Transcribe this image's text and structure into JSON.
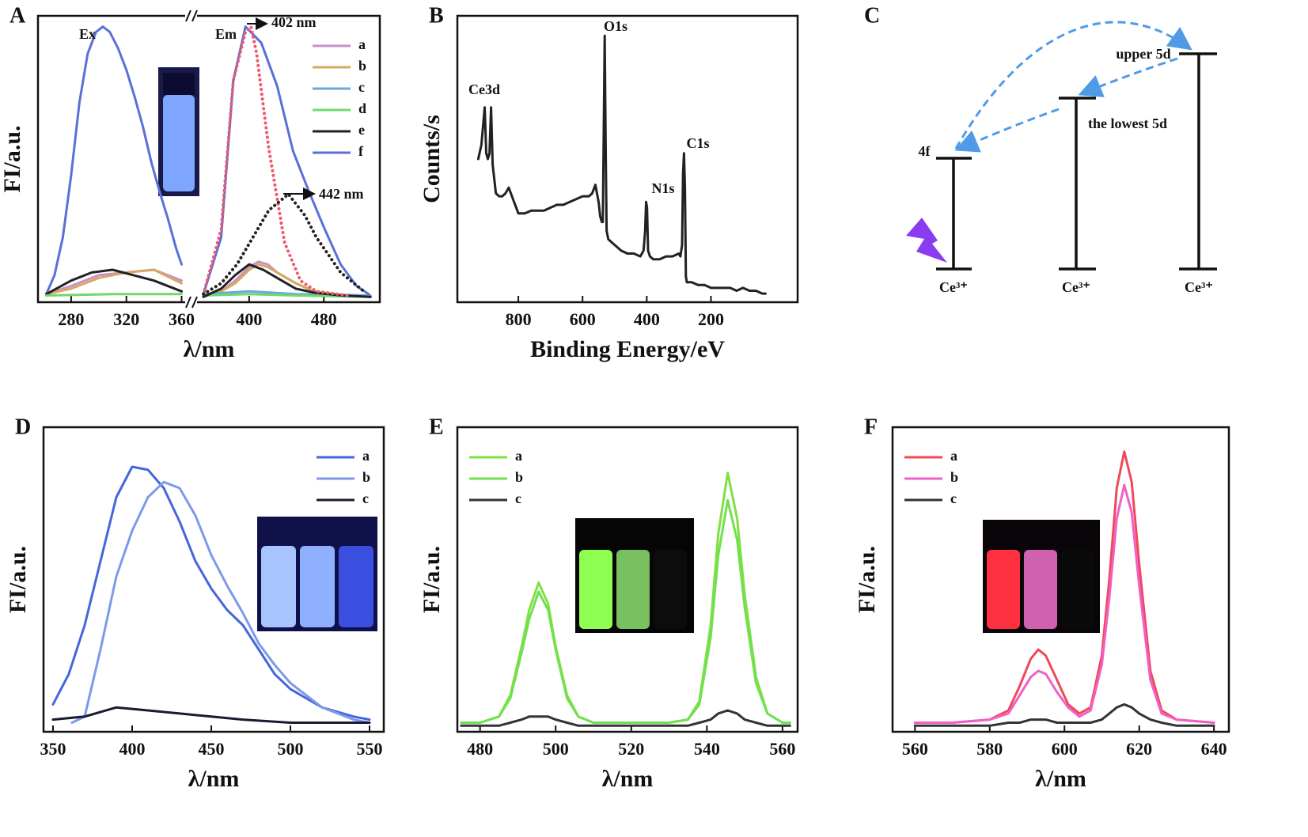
{
  "chart_data": [
    {
      "type": "line",
      "panel_label": "A",
      "xlabel": "λ/nm",
      "ylabel": "FI/a.u.",
      "ylim": [
        -2,
        104
      ],
      "axes": [
        {
          "xlim": [
            256,
            362
          ],
          "xticks": [
            280,
            320,
            360
          ]
        },
        {
          "xlim": [
            345,
            540
          ],
          "xticks": [
            400,
            480
          ]
        }
      ],
      "legend": "upper right",
      "annotations": [
        "Ex",
        "Em",
        "402 nm",
        "442 nm"
      ],
      "series": [
        {
          "name": "a",
          "color": "#c890c8",
          "axis": 1,
          "x": [
            351,
            370,
            385,
            400,
            410,
            420,
            430,
            450,
            470,
            500,
            530
          ],
          "values": [
            0,
            2,
            6,
            11,
            13,
            12,
            9,
            5,
            2,
            0.5,
            0
          ]
        },
        {
          "name": "b",
          "color": "#d8a860",
          "axis": 1,
          "x": [
            351,
            370,
            385,
            400,
            410,
            420,
            430,
            450,
            470,
            500,
            530
          ],
          "values": [
            0,
            2,
            5,
            10,
            12,
            11,
            9,
            5,
            2,
            0.5,
            0
          ]
        },
        {
          "name": "c",
          "color": "#6aa8e0",
          "axis": 1,
          "x": [
            351,
            400,
            450,
            530
          ],
          "values": [
            1,
            2,
            1,
            0.5
          ]
        },
        {
          "name": "d",
          "color": "#70d870",
          "axis": 1,
          "x": [
            351,
            400,
            450,
            530
          ],
          "values": [
            0.5,
            1,
            0.5,
            0
          ]
        },
        {
          "name": "e",
          "color": "#222222",
          "axis": 1,
          "x": [
            351,
            370,
            385,
            400,
            415,
            430,
            450,
            470,
            500,
            530
          ],
          "values": [
            0,
            3,
            8,
            12,
            10,
            7,
            3,
            1.5,
            0.5,
            0
          ]
        },
        {
          "name": "f",
          "color": "#5a70d8",
          "axis": 1,
          "x": [
            351,
            370,
            383,
            396,
            413,
            430,
            447,
            464,
            481,
            498,
            515,
            528
          ],
          "values": [
            1,
            22,
            80,
            100,
            94,
            78,
            54,
            39,
            25,
            12,
            4,
            1
          ]
        },
        {
          "color": "#f05a6a",
          "style": "dotted",
          "axis": 1,
          "x": [
            351,
            370,
            383,
            396,
            402,
            408,
            421,
            438,
            455,
            472,
            506
          ],
          "values": [
            1,
            25,
            80,
            98,
            100,
            90,
            55,
            20,
            6,
            2,
            0.5
          ]
        },
        {
          "color": "#222222",
          "style": "dotted",
          "axis": 1,
          "x": [
            351,
            370,
            387,
            404,
            421,
            442,
            460,
            472,
            498,
            523
          ],
          "values": [
            1,
            5,
            12,
            22,
            32,
            38,
            30,
            22,
            9,
            2
          ]
        },
        {
          "color": "#5a70d8",
          "axis": 0,
          "x": [
            262,
            268,
            274,
            280,
            286,
            292,
            298,
            303,
            308,
            314,
            320,
            326,
            332,
            338,
            344,
            350,
            356,
            360
          ],
          "values": [
            1,
            8,
            22,
            45,
            72,
            90,
            98,
            100,
            98,
            92,
            84,
            74,
            63,
            50,
            39,
            29,
            18,
            12
          ]
        },
        {
          "color": "#c890c8",
          "axis": 0,
          "x": [
            262,
            280,
            300,
            320,
            340,
            360
          ],
          "values": [
            1,
            4,
            8,
            9,
            10,
            6
          ]
        },
        {
          "color": "#d8a860",
          "axis": 0,
          "x": [
            262,
            280,
            300,
            320,
            340,
            360
          ],
          "values": [
            1,
            3,
            7,
            9,
            10,
            5
          ]
        },
        {
          "color": "#222222",
          "axis": 0,
          "x": [
            262,
            280,
            295,
            310,
            325,
            340,
            360
          ],
          "values": [
            1,
            6,
            9,
            10,
            8,
            6,
            2
          ]
        },
        {
          "color": "#70d870",
          "axis": 0,
          "x": [
            262,
            310,
            360
          ],
          "values": [
            0.5,
            1,
            1
          ]
        }
      ]
    },
    {
      "type": "line",
      "panel_label": "B",
      "xlabel": "Binding Energy/eV",
      "ylabel": "Counts/s",
      "ylim": [
        0,
        100
      ],
      "xlim": [
        990,
        -70
      ],
      "xticks": [
        800,
        600,
        400,
        200
      ],
      "color": "#222222",
      "annotations": [
        "Ce3d",
        "O1s",
        "N1s",
        "C1s"
      ],
      "x": [
        925,
        915,
        905,
        900,
        895,
        890,
        885,
        880,
        870,
        860,
        850,
        840,
        830,
        820,
        800,
        780,
        760,
        740,
        720,
        700,
        680,
        660,
        640,
        620,
        600,
        580,
        570,
        560,
        550,
        545,
        540,
        537,
        534,
        531,
        528,
        525,
        520,
        510,
        500,
        480,
        460,
        440,
        420,
        410,
        405,
        402,
        399,
        396,
        390,
        380,
        360,
        340,
        320,
        300,
        295,
        290,
        287,
        284,
        281,
        278,
        275,
        270,
        260,
        240,
        220,
        200,
        180,
        160,
        140,
        120,
        100,
        80,
        60,
        40,
        30
      ],
      "values": [
        50,
        55,
        68,
        52,
        50,
        52,
        68,
        48,
        38,
        37,
        37,
        38,
        40,
        37,
        31,
        31,
        32,
        32,
        32,
        33,
        34,
        34,
        35,
        36,
        37,
        37,
        38,
        41,
        35,
        30,
        28,
        28,
        60,
        93,
        55,
        25,
        22,
        21,
        20,
        18,
        17,
        17,
        16,
        18,
        25,
        35,
        33,
        18,
        16,
        15,
        15,
        16,
        16,
        17,
        16,
        20,
        45,
        52,
        40,
        9,
        7,
        7,
        7,
        6,
        6,
        5,
        5,
        5,
        5,
        4,
        5,
        4,
        4,
        3,
        3
      ]
    },
    {
      "type": "diagram",
      "panel_label": "C",
      "levels": [
        "4f",
        "the lowest 5d",
        "upper 5d"
      ],
      "ground": [
        "Ce³⁺",
        "Ce³⁺",
        "Ce³⁺"
      ]
    },
    {
      "type": "line",
      "panel_label": "D",
      "xlabel": "λ/nm",
      "ylabel": "FI/a.u.",
      "ylim": [
        0,
        100
      ],
      "xlim": [
        344,
        559
      ],
      "xticks": [
        350,
        400,
        450,
        500,
        550
      ],
      "legend": "upper right",
      "series": [
        {
          "name": "a",
          "color": "#4466dd",
          "x": [
            350,
            360,
            370,
            380,
            390,
            400,
            410,
            420,
            430,
            440,
            450,
            460,
            470,
            480,
            490,
            500,
            520,
            540,
            550
          ],
          "values": [
            9,
            19,
            35,
            56,
            77,
            87,
            86,
            80,
            69,
            56,
            47,
            40,
            35,
            27,
            19,
            14,
            8,
            5,
            4
          ]
        },
        {
          "name": "b",
          "color": "#7d9ae8",
          "x": [
            362,
            370,
            380,
            390,
            400,
            410,
            420,
            430,
            440,
            450,
            460,
            470,
            480,
            490,
            500,
            520,
            540,
            550
          ],
          "values": [
            3,
            5,
            27,
            51,
            66,
            77,
            82,
            80,
            71,
            58,
            48,
            39,
            29,
            22,
            16,
            8,
            4,
            3
          ]
        },
        {
          "name": "c",
          "color": "#1a1a30",
          "x": [
            350,
            370,
            390,
            410,
            430,
            450,
            470,
            500,
            550
          ],
          "values": [
            4,
            5,
            8,
            7,
            6,
            5,
            4,
            3,
            3
          ]
        }
      ]
    },
    {
      "type": "line",
      "panel_label": "E",
      "xlabel": "λ/nm",
      "ylabel": "FI/a.u.",
      "ylim": [
        0,
        100
      ],
      "xlim": [
        474,
        564
      ],
      "xticks": [
        480,
        500,
        520,
        540,
        560
      ],
      "legend": "upper left",
      "series": [
        {
          "name": "a",
          "color": "#80e040",
          "x": [
            475,
            480,
            485,
            488,
            491,
            493,
            495.5,
            498,
            500,
            503,
            506,
            510,
            520,
            530,
            535,
            538,
            541,
            543,
            545.5,
            548,
            550,
            553,
            556,
            560,
            562
          ],
          "values": [
            3,
            3,
            5,
            12,
            28,
            40,
            49,
            42,
            28,
            12,
            5,
            3,
            3,
            3,
            4,
            10,
            35,
            65,
            85,
            70,
            45,
            18,
            6,
            3,
            3
          ]
        },
        {
          "name": "b",
          "color": "#70e050",
          "x": [
            475,
            480,
            485,
            488,
            491,
            493,
            495.5,
            498,
            500,
            503,
            506,
            510,
            520,
            530,
            535,
            538,
            541,
            543,
            545.5,
            548,
            550,
            553,
            556,
            560,
            562
          ],
          "values": [
            3,
            3,
            5,
            11,
            26,
            37,
            46,
            40,
            27,
            11,
            5,
            3,
            3,
            3,
            4,
            9,
            31,
            58,
            76,
            63,
            41,
            16,
            6,
            3,
            3
          ]
        },
        {
          "name": "c",
          "color": "#333333",
          "x": [
            475,
            480,
            485,
            488,
            491,
            493,
            495.5,
            498,
            500,
            503,
            506,
            510,
            520,
            530,
            535,
            538,
            541,
            543,
            545.5,
            548,
            550,
            553,
            556,
            560,
            562
          ],
          "values": [
            2,
            2,
            2,
            3,
            4,
            5,
            5,
            5,
            4,
            3,
            2,
            2,
            2,
            2,
            2,
            3,
            4,
            6,
            7,
            6,
            4,
            3,
            2,
            2,
            2
          ]
        }
      ]
    },
    {
      "type": "line",
      "panel_label": "F",
      "xlabel": "λ/nm",
      "ylabel": "FI/a.u.",
      "ylim": [
        0,
        100
      ],
      "xlim": [
        554,
        644
      ],
      "xticks": [
        560,
        580,
        600,
        620,
        640
      ],
      "legend": "upper left",
      "series": [
        {
          "name": "a",
          "color": "#f04858",
          "x": [
            560,
            570,
            580,
            585,
            588,
            591,
            593,
            595,
            598,
            601,
            604,
            607,
            610,
            612,
            614,
            616,
            618,
            620,
            623,
            626,
            630,
            640
          ],
          "values": [
            3,
            3,
            4,
            7,
            15,
            24,
            27,
            25,
            17,
            9,
            6,
            8,
            25,
            50,
            80,
            92,
            82,
            55,
            20,
            7,
            4,
            3
          ]
        },
        {
          "name": "b",
          "color": "#f060c8",
          "x": [
            560,
            570,
            580,
            585,
            588,
            591,
            593,
            595,
            598,
            601,
            604,
            607,
            610,
            612,
            614,
            616,
            618,
            620,
            623,
            626,
            630,
            640
          ],
          "values": [
            3,
            3,
            4,
            6,
            12,
            18,
            20,
            19,
            13,
            8,
            5,
            7,
            22,
            44,
            70,
            81,
            72,
            48,
            17,
            6,
            4,
            3
          ]
        },
        {
          "name": "c",
          "color": "#333333",
          "x": [
            560,
            570,
            580,
            585,
            588,
            591,
            593,
            595,
            598,
            601,
            604,
            607,
            610,
            612,
            614,
            616,
            618,
            620,
            623,
            626,
            630,
            640
          ],
          "values": [
            2,
            2,
            2,
            3,
            3,
            4,
            4,
            4,
            3,
            3,
            3,
            3,
            4,
            6,
            8,
            9,
            8,
            6,
            4,
            3,
            2,
            2
          ]
        }
      ]
    }
  ]
}
